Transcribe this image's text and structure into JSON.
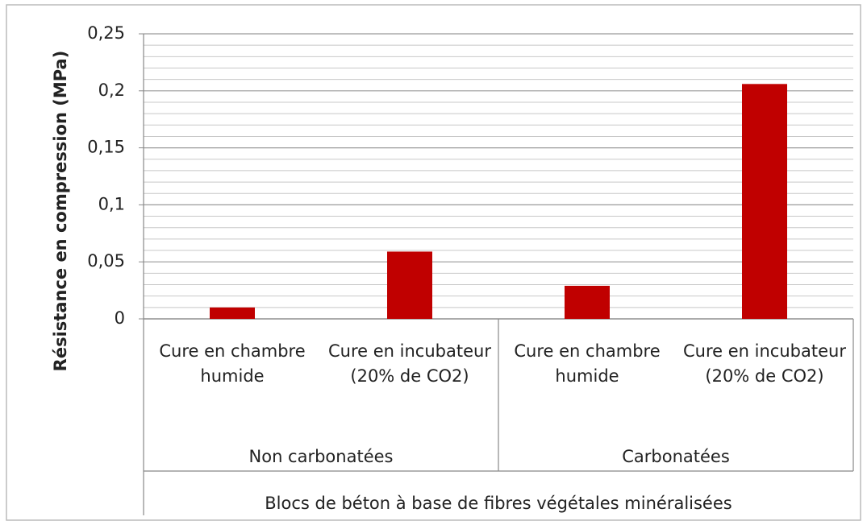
{
  "chart_data": {
    "type": "bar",
    "y_label": "Résistance en compression (MPa)",
    "x_label": "Blocs de béton à base de fibres végétales minéralisées",
    "categories": [
      "Cure en chambre humide",
      "Cure en incubateur (20% de CO2)",
      "Cure en chambre humide",
      "Cure en incubateur (20% de CO2)"
    ],
    "groups": [
      "Non carbonatées",
      "Carbonatées"
    ],
    "values": [
      0.01,
      0.059,
      0.029,
      0.206
    ],
    "color": "#c00000",
    "ylim": [
      0,
      0.25
    ],
    "yticks": [
      0,
      {
        "value": 0.05,
        "label": "0,05"
      },
      {
        "value": 0.1,
        "label": "0,1"
      },
      {
        "value": 0.15,
        "label": "0,15"
      },
      {
        "value": 0.2,
        "label": "0,2"
      },
      {
        "value": 0.25,
        "label": "0,25"
      }
    ],
    "yminorticks": [
      0.01,
      0.02,
      0.03,
      0.04,
      0.06,
      0.07,
      0.08,
      0.09,
      0.11,
      0.12,
      0.13,
      0.14,
      0.16,
      0.17,
      0.18,
      0.19,
      0.21,
      0.22,
      0.23,
      0.24
    ],
    "grid": true
  }
}
